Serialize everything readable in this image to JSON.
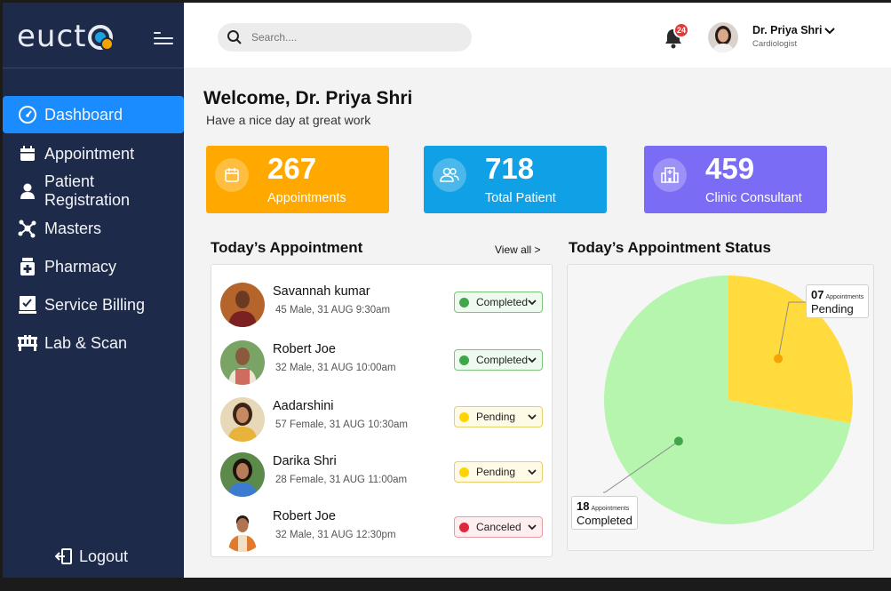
{
  "app": {
    "logo_text": "eucto"
  },
  "sidebar": {
    "items": [
      {
        "label": "Dashboard",
        "icon": "gauge-icon",
        "active": true
      },
      {
        "label": "Appointment",
        "icon": "calendar-icon"
      },
      {
        "label": "Patient Registration",
        "icon": "person-icon"
      },
      {
        "label": "Masters",
        "icon": "network-icon"
      },
      {
        "label": "Pharmacy",
        "icon": "medicine-icon"
      },
      {
        "label": "Service Billing",
        "icon": "billing-icon"
      },
      {
        "label": "Lab & Scan",
        "icon": "lab-icon"
      }
    ],
    "logout_label": "Logout"
  },
  "header": {
    "search_placeholder": "Search....",
    "notification_count": "24",
    "user_name": "Dr. Priya Shri",
    "user_role": "Cardiologist"
  },
  "welcome": {
    "title": "Welcome, Dr. Priya Shri",
    "subtitle": "Have a nice day at great work"
  },
  "stats": [
    {
      "value": "267",
      "label": "Appointments",
      "color": "#ffa800",
      "icon": "calendar-icon"
    },
    {
      "value": "718",
      "label": "Total Patient",
      "color": "#0fa0e6",
      "icon": "users-icon"
    },
    {
      "value": "459",
      "label": "Clinic Consultant",
      "color": "#7a6cf5",
      "icon": "hospital-icon"
    }
  ],
  "appointments": {
    "title": "Today’s Appointment",
    "view_all": "View all >",
    "rows": [
      {
        "name": "Savannah kumar",
        "meta": "45 Male,  31 AUG  9:30am",
        "status": "Completed"
      },
      {
        "name": "Robert Joe",
        "meta": "32 Male,  31 AUG  10:00am",
        "status": "Completed"
      },
      {
        "name": "Aadarshini",
        "meta": "57 Female,  31 AUG  10:30am",
        "status": "Pending"
      },
      {
        "name": "Darika Shri",
        "meta": "28 Female,  31 AUG  11:00am",
        "status": "Pending"
      },
      {
        "name": "Robert Joe",
        "meta": "32 Male,  31 AUG  12:30pm",
        "status": "Canceled"
      }
    ]
  },
  "status_colors": {
    "Completed": {
      "bg": "#eefaee",
      "border": "#7cc47c",
      "dot": "#3fa64a"
    },
    "Pending": {
      "bg": "#fffae6",
      "border": "#e9cf6a",
      "dot": "#ffd400"
    },
    "Canceled": {
      "bg": "#ffeef0",
      "border": "#e99aa3",
      "dot": "#e0283c"
    }
  },
  "status_chart": {
    "title": "Today’s Appointment Status",
    "pending": {
      "count": "07",
      "small": "Appointments",
      "label": "Pending"
    },
    "completed": {
      "count": "18",
      "small": "Appointments",
      "label": "Completed"
    }
  },
  "chart_data": {
    "type": "pie",
    "title": "Today’s Appointment Status",
    "categories": [
      "Pending",
      "Completed"
    ],
    "values": [
      7,
      18
    ],
    "colors": [
      "#ffdb3d",
      "#b6f5ae"
    ]
  }
}
